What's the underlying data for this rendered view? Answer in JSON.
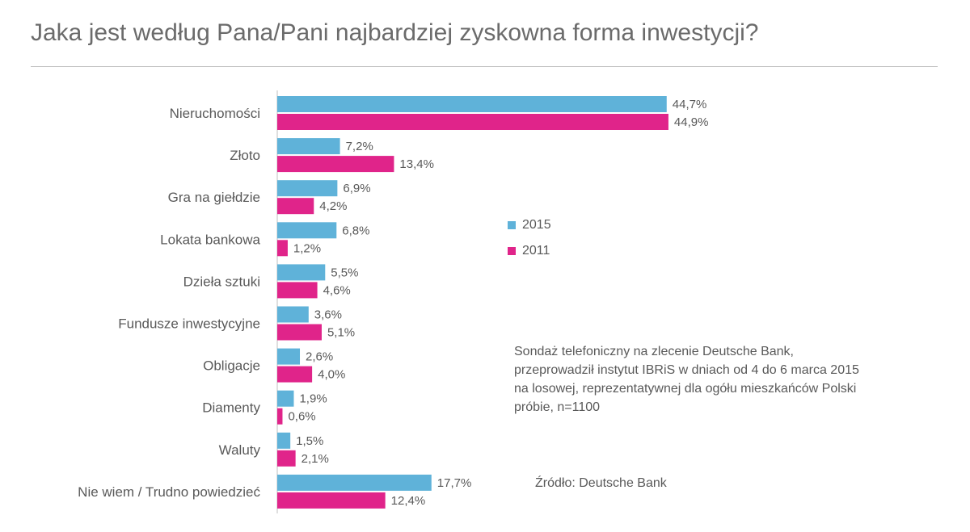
{
  "title": "Jaka jest według Pana/Pani najbardziej zyskowna forma inwestycji?",
  "legend": [
    {
      "label": "2015",
      "color": "#5fb2d9"
    },
    {
      "label": "2011",
      "color": "#e0248a"
    }
  ],
  "note": "Sondaż telefoniczny na zlecenie Deutsche Bank, przeprowadził instytut IBRiS w dniach od 4 do 6 marca 2015 na losowej, reprezentatywnej dla ogółu mieszkańców Polski próbie, n=1100",
  "source": "Źródło: Deutsche Bank",
  "chart_data": {
    "type": "bar",
    "orientation": "horizontal",
    "categories": [
      "Nieruchomości",
      "Złoto",
      "Gra na giełdzie",
      "Lokata bankowa",
      "Dzieła sztuki",
      "Fundusze inwestycyjne",
      "Obligacje",
      "Diamenty",
      "Waluty",
      "Nie wiem / Trudno powiedzieć"
    ],
    "series": [
      {
        "name": "2015",
        "color": "#5fb2d9",
        "values": [
          44.7,
          7.2,
          6.9,
          6.8,
          5.5,
          3.6,
          2.6,
          1.9,
          1.5,
          17.7
        ],
        "labels": [
          "44,7%",
          "7,2%",
          "6,9%",
          "6,8%",
          "5,5%",
          "3,6%",
          "2,6%",
          "1,9%",
          "1,5%",
          "17,7%"
        ]
      },
      {
        "name": "2011",
        "color": "#e0248a",
        "values": [
          44.9,
          13.4,
          4.2,
          1.2,
          4.6,
          5.1,
          4.0,
          0.6,
          2.1,
          12.4
        ],
        "labels": [
          "44,9%",
          "13,4%",
          "4,2%",
          "1,2%",
          "4,6%",
          "5,1%",
          "4,0%",
          "0,6%",
          "2,1%",
          "12,4%"
        ]
      }
    ],
    "unit": "%",
    "xlim": [
      0,
      45
    ],
    "grid": false,
    "legend_position": "right"
  }
}
